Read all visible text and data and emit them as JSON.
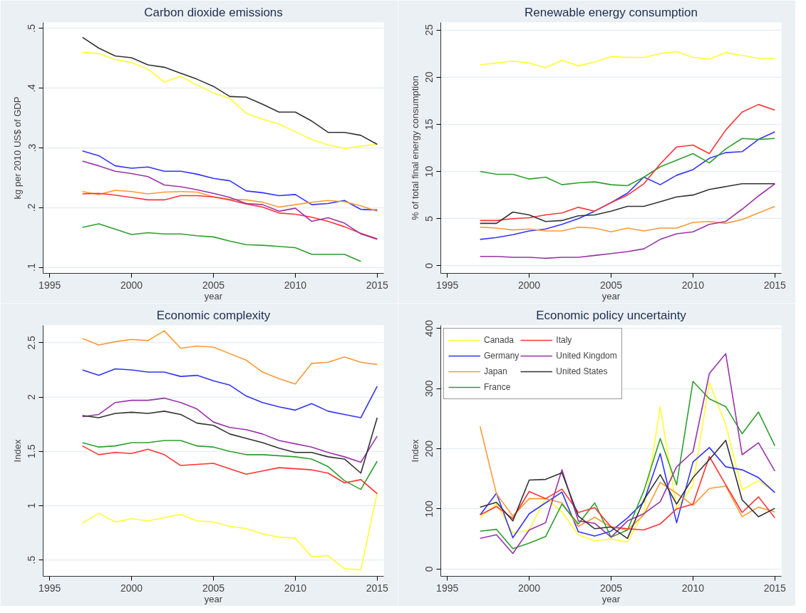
{
  "chart_data": [
    {
      "type": "line",
      "title": "Carbon dioxide emissions",
      "xlabel": "year",
      "ylabel": "kg per 2010 US$ of GDP",
      "x": [
        1997,
        1998,
        1999,
        2000,
        2001,
        2002,
        2003,
        2004,
        2005,
        2006,
        2007,
        2008,
        2009,
        2010,
        2011,
        2012,
        2013,
        2014,
        2015
      ],
      "xlim": [
        1994.6,
        2015.4
      ],
      "xticks": [
        1995,
        2000,
        2005,
        2010,
        2015
      ],
      "ylim": [
        0.09,
        0.51
      ],
      "yticks": [
        {
          "value": 0.1,
          "label": ".1"
        },
        {
          "value": 0.2,
          "label": ".2"
        },
        {
          "value": 0.3,
          "label": ".3"
        },
        {
          "value": 0.4,
          "label": ".4"
        },
        {
          "value": 0.5,
          "label": ".5"
        }
      ],
      "grid": "y",
      "legend": false,
      "series": [
        {
          "color": "#ffff33",
          "values": [
            0.46,
            0.458,
            0.448,
            0.443,
            0.432,
            0.41,
            0.42,
            0.405,
            0.392,
            0.383,
            0.358,
            0.348,
            0.34,
            0.327,
            0.314,
            0.305,
            0.299,
            0.303,
            0.306
          ]
        },
        {
          "color": "#3333ff",
          "values": [
            0.295,
            0.287,
            0.27,
            0.266,
            0.268,
            0.261,
            0.261,
            0.256,
            0.249,
            0.245,
            0.228,
            0.225,
            0.22,
            0.222,
            0.205,
            0.207,
            0.212,
            0.197,
            0.196
          ]
        },
        {
          "color": "#ff9933",
          "values": [
            0.227,
            0.222,
            0.229,
            0.227,
            0.223,
            0.226,
            0.227,
            0.226,
            0.218,
            0.214,
            0.213,
            0.209,
            0.201,
            0.205,
            0.209,
            0.212,
            0.21,
            0.203,
            0.194
          ]
        },
        {
          "color": "#2ca02c",
          "values": [
            0.167,
            0.173,
            0.164,
            0.155,
            0.158,
            0.156,
            0.156,
            0.153,
            0.151,
            0.144,
            0.138,
            0.137,
            0.135,
            0.133,
            0.122,
            0.122,
            0.122,
            0.11,
            null
          ]
        },
        {
          "color": "#ff3333",
          "values": [
            0.223,
            0.224,
            0.221,
            0.217,
            0.213,
            0.213,
            0.22,
            0.22,
            0.218,
            0.213,
            0.206,
            0.201,
            0.191,
            0.189,
            0.184,
            0.177,
            0.168,
            0.157,
            0.148
          ]
        },
        {
          "color": "#9933aa",
          "values": [
            0.278,
            0.27,
            0.261,
            0.257,
            0.252,
            0.238,
            0.235,
            0.23,
            0.224,
            0.217,
            0.207,
            0.205,
            0.194,
            0.199,
            0.177,
            0.183,
            0.174,
            0.156,
            0.147
          ]
        },
        {
          "color": "#333333",
          "values": [
            0.485,
            0.467,
            0.454,
            0.451,
            0.439,
            0.435,
            0.425,
            0.415,
            0.403,
            0.386,
            0.385,
            0.373,
            0.36,
            0.36,
            0.345,
            0.326,
            0.326,
            0.321,
            0.306
          ]
        }
      ]
    },
    {
      "type": "line",
      "title": "Renewable energy consumption",
      "xlabel": "year",
      "ylabel": "% of total final energy consumption",
      "x": [
        1997,
        1998,
        1999,
        2000,
        2001,
        2002,
        2003,
        2004,
        2005,
        2006,
        2007,
        2008,
        2009,
        2010,
        2011,
        2012,
        2013,
        2014,
        2015
      ],
      "xlim": [
        1994.6,
        2015.4
      ],
      "xticks": [
        1995,
        2000,
        2005,
        2010,
        2015
      ],
      "ylim": [
        -0.8,
        25.8
      ],
      "yticks": [
        0,
        5,
        10,
        15,
        20,
        25
      ],
      "grid": "y",
      "legend": false,
      "series": [
        {
          "color": "#ffff33",
          "values": [
            21.3,
            21.5,
            21.7,
            21.5,
            21.0,
            21.8,
            21.2,
            21.6,
            22.2,
            22.1,
            22.1,
            22.5,
            22.7,
            22.1,
            21.9,
            22.6,
            22.3,
            22.0,
            22.0
          ]
        },
        {
          "color": "#3333ff",
          "values": [
            2.8,
            3.0,
            3.3,
            3.7,
            3.9,
            4.4,
            5.0,
            5.8,
            6.7,
            7.7,
            9.4,
            8.6,
            9.6,
            10.2,
            11.4,
            12.0,
            12.1,
            13.4,
            14.2
          ]
        },
        {
          "color": "#ff9933",
          "values": [
            4.1,
            4.0,
            3.8,
            3.9,
            3.7,
            3.7,
            4.1,
            4.0,
            3.6,
            4.0,
            3.7,
            4.0,
            4.0,
            4.6,
            4.7,
            4.5,
            4.9,
            5.6,
            6.3
          ]
        },
        {
          "color": "#2ca02c",
          "values": [
            10.0,
            9.7,
            9.7,
            9.2,
            9.4,
            8.6,
            8.8,
            8.9,
            8.6,
            8.5,
            9.4,
            10.5,
            11.2,
            11.9,
            10.9,
            12.4,
            13.5,
            13.4,
            13.5
          ]
        },
        {
          "color": "#ff3333",
          "values": [
            4.8,
            4.8,
            5.0,
            5.1,
            5.4,
            5.6,
            6.2,
            5.8,
            6.7,
            7.5,
            8.7,
            10.8,
            12.6,
            12.8,
            11.9,
            14.4,
            16.3,
            17.1,
            16.5
          ]
        },
        {
          "color": "#9933aa",
          "values": [
            1.0,
            1.0,
            0.9,
            0.9,
            0.8,
            0.9,
            0.9,
            1.1,
            1.3,
            1.5,
            1.8,
            2.8,
            3.4,
            3.6,
            4.4,
            4.7,
            6.0,
            7.4,
            8.7
          ]
        },
        {
          "color": "#333333",
          "values": [
            4.5,
            4.5,
            5.7,
            5.4,
            4.7,
            4.8,
            5.3,
            5.4,
            5.8,
            6.3,
            6.3,
            6.8,
            7.3,
            7.5,
            8.1,
            8.4,
            8.7,
            8.7,
            8.7
          ]
        }
      ]
    },
    {
      "type": "line",
      "title": "Economic complexity",
      "xlabel": "year",
      "ylabel": "Index",
      "x": [
        1997,
        1998,
        1999,
        2000,
        2001,
        2002,
        2003,
        2004,
        2005,
        2006,
        2007,
        2008,
        2009,
        2010,
        2011,
        2012,
        2013,
        2014,
        2015
      ],
      "xlim": [
        1994.6,
        2015.4
      ],
      "xticks": [
        1995,
        2000,
        2005,
        2010,
        2015
      ],
      "ylim": [
        0.35,
        2.66
      ],
      "yticks": [
        {
          "value": 0.5,
          "label": ".5"
        },
        1,
        1.5,
        2,
        2.5
      ],
      "grid": "y",
      "legend": false,
      "series": [
        {
          "color": "#ffff33",
          "values": [
            0.84,
            0.93,
            0.85,
            0.88,
            0.86,
            0.89,
            0.92,
            0.86,
            0.85,
            0.81,
            0.79,
            0.74,
            0.71,
            0.7,
            0.53,
            0.54,
            0.42,
            0.41,
            1.12
          ]
        },
        {
          "color": "#3333ff",
          "values": [
            2.25,
            2.2,
            2.26,
            2.25,
            2.23,
            2.23,
            2.19,
            2.2,
            2.15,
            2.11,
            2.01,
            1.95,
            1.91,
            1.88,
            1.94,
            1.87,
            1.84,
            1.81,
            2.1
          ]
        },
        {
          "color": "#ff9933",
          "values": [
            2.54,
            2.48,
            2.51,
            2.53,
            2.52,
            2.61,
            2.45,
            2.47,
            2.46,
            2.4,
            2.34,
            2.23,
            2.17,
            2.12,
            2.31,
            2.32,
            2.37,
            2.32,
            2.3
          ]
        },
        {
          "color": "#2ca02c",
          "values": [
            1.58,
            1.54,
            1.55,
            1.58,
            1.58,
            1.6,
            1.6,
            1.55,
            1.54,
            1.5,
            1.47,
            1.47,
            1.46,
            1.45,
            1.43,
            1.36,
            1.23,
            1.15,
            1.41
          ]
        },
        {
          "color": "#ff3333",
          "values": [
            1.55,
            1.47,
            1.49,
            1.48,
            1.52,
            1.47,
            1.37,
            1.38,
            1.39,
            1.34,
            1.29,
            1.32,
            1.35,
            1.34,
            1.33,
            1.3,
            1.21,
            1.24,
            1.11
          ]
        },
        {
          "color": "#9933aa",
          "values": [
            1.82,
            1.84,
            1.95,
            1.97,
            1.97,
            1.99,
            1.95,
            1.89,
            1.77,
            1.72,
            1.7,
            1.66,
            1.6,
            1.57,
            1.54,
            1.49,
            1.45,
            1.4,
            1.64
          ]
        },
        {
          "color": "#333333",
          "values": [
            1.83,
            1.81,
            1.85,
            1.86,
            1.85,
            1.87,
            1.84,
            1.76,
            1.74,
            1.66,
            1.62,
            1.58,
            1.53,
            1.49,
            1.49,
            1.45,
            1.43,
            1.3,
            1.81
          ]
        }
      ]
    },
    {
      "type": "line",
      "title": "Economic policy uncertainty",
      "xlabel": "year",
      "ylabel": "Index",
      "x": [
        1997,
        1998,
        1999,
        2000,
        2001,
        2002,
        2003,
        2004,
        2005,
        2006,
        2007,
        2008,
        2009,
        2010,
        2011,
        2012,
        2013,
        2014,
        2015
      ],
      "xlim": [
        1994.6,
        2015.4
      ],
      "xticks": [
        1995,
        2000,
        2005,
        2010,
        2015
      ],
      "ylim": [
        -12,
        405
      ],
      "yticks": [
        0,
        100,
        200,
        300,
        400
      ],
      "grid": "y",
      "legend": "top left",
      "series": [
        {
          "name": "Canada",
          "color": "#ffff33",
          "values": [
            85,
            108,
            60,
            65,
            118,
            95,
            57,
            47,
            50,
            45,
            95,
            270,
            100,
            140,
            310,
            240,
            132,
            147,
            128
          ]
        },
        {
          "name": "Germany",
          "color": "#3333ff",
          "values": [
            90,
            126,
            52,
            92,
            110,
            128,
            62,
            55,
            63,
            85,
            112,
            192,
            77,
            178,
            202,
            170,
            165,
            152,
            127
          ]
        },
        {
          "name": "Japan",
          "color": "#ff9933",
          "values": [
            237,
            125,
            88,
            117,
            117,
            110,
            71,
            86,
            70,
            65,
            90,
            144,
            126,
            106,
            134,
            138,
            87,
            103,
            95
          ]
        },
        {
          "name": "France",
          "color": "#2ca02c",
          "values": [
            63,
            66,
            34,
            43,
            54,
            108,
            75,
            110,
            53,
            65,
            130,
            217,
            140,
            312,
            283,
            270,
            225,
            261,
            205
          ]
        },
        {
          "name": "Italy",
          "color": "#ff3333",
          "values": [
            90,
            104,
            84,
            129,
            117,
            133,
            94,
            102,
            70,
            67,
            65,
            75,
            100,
            108,
            187,
            140,
            94,
            120,
            85
          ]
        },
        {
          "name": "United Kingdom",
          "color": "#9933aa",
          "values": [
            51,
            57,
            26,
            65,
            77,
            165,
            80,
            76,
            53,
            80,
            92,
            112,
            170,
            195,
            325,
            358,
            190,
            210,
            163
          ]
        },
        {
          "name": "United States",
          "color": "#333333",
          "values": [
            103,
            111,
            80,
            148,
            149,
            160,
            88,
            67,
            70,
            51,
            115,
            157,
            108,
            152,
            182,
            214,
            115,
            87,
            101
          ]
        }
      ]
    }
  ]
}
